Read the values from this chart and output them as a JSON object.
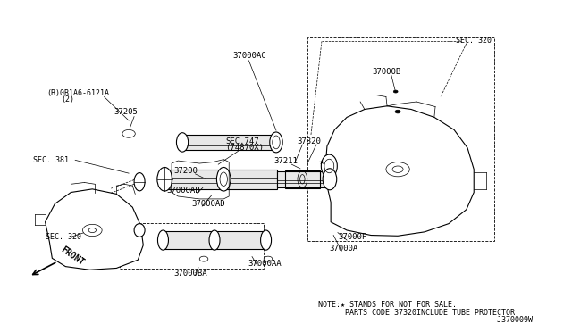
{
  "bg_color": "#ffffff",
  "fig_width": 6.4,
  "fig_height": 3.72,
  "dpi": 100,
  "note_lines": [
    "NOTE:★ STANDS FOR NOT FOR SALE.",
    "      PARTS CODE 37320INCLUDE TUBE PROTECTOR.",
    "                                        J370009W"
  ],
  "font_size_label": 6.5,
  "font_size_note": 6.0,
  "line_color": "#000000",
  "text_color": "#000000"
}
